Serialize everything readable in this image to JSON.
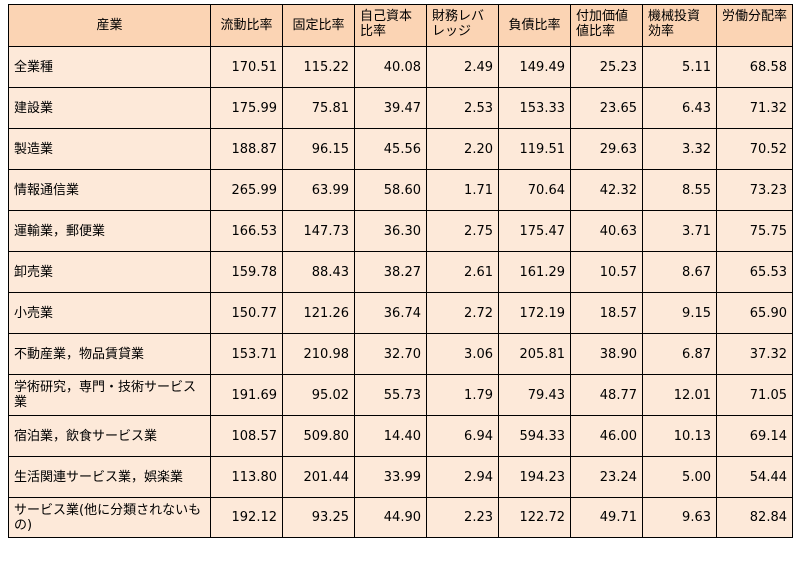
{
  "headers": [
    "産業",
    "流動比率",
    "固定比率",
    "自己資本比率",
    "財務レバレッジ",
    "負債比率",
    "付加価値値比率",
    "機械投資効率",
    "労働分配率"
  ],
  "rows": [
    [
      "全業種",
      "170.51",
      "115.22",
      "40.08",
      "2.49",
      "149.49",
      "25.23",
      "5.11",
      "68.58"
    ],
    [
      "建設業",
      "175.99",
      "75.81",
      "39.47",
      "2.53",
      "153.33",
      "23.65",
      "6.43",
      "71.32"
    ],
    [
      "製造業",
      "188.87",
      "96.15",
      "45.56",
      "2.20",
      "119.51",
      "29.63",
      "3.32",
      "70.52"
    ],
    [
      "情報通信業",
      "265.99",
      "63.99",
      "58.60",
      "1.71",
      "70.64",
      "42.32",
      "8.55",
      "73.23"
    ],
    [
      "運輸業，郵便業",
      "166.53",
      "147.73",
      "36.30",
      "2.75",
      "175.47",
      "40.63",
      "3.71",
      "75.75"
    ],
    [
      "卸売業",
      "159.78",
      "88.43",
      "38.27",
      "2.61",
      "161.29",
      "10.57",
      "8.67",
      "65.53"
    ],
    [
      "小売業",
      "150.77",
      "121.26",
      "36.74",
      "2.72",
      "172.19",
      "18.57",
      "9.15",
      "65.90"
    ],
    [
      "不動産業，物品賃貸業",
      "153.71",
      "210.98",
      "32.70",
      "3.06",
      "205.81",
      "38.90",
      "6.87",
      "37.32"
    ],
    [
      "学術研究，専門・技術サービス業",
      "191.69",
      "95.02",
      "55.73",
      "1.79",
      "79.43",
      "48.77",
      "12.01",
      "71.05"
    ],
    [
      "宿泊業，飲食サービス業",
      "108.57",
      "509.80",
      "14.40",
      "6.94",
      "594.33",
      "46.00",
      "10.13",
      "69.14"
    ],
    [
      "生活関連サービス業，娯楽業",
      "113.80",
      "201.44",
      "33.99",
      "2.94",
      "194.23",
      "23.24",
      "5.00",
      "54.44"
    ],
    [
      "サービス業(他に分類されないもの)",
      "192.12",
      "93.25",
      "44.90",
      "2.23",
      "122.72",
      "49.71",
      "9.63",
      "82.84"
    ]
  ]
}
